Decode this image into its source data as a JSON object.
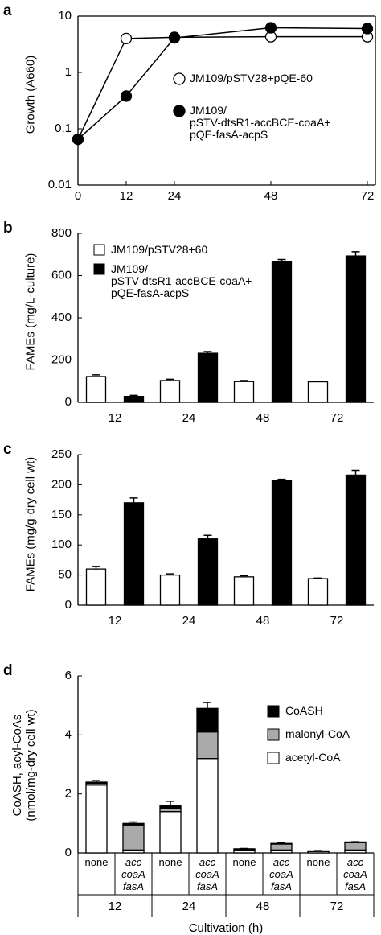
{
  "chart_data": [
    {
      "type": "line",
      "panel": "a",
      "ylabel": "Growth (A660)",
      "log_y": true,
      "x": [
        0,
        12,
        24,
        48,
        72
      ],
      "xlim": [
        0,
        74
      ],
      "xticks": [
        0,
        12,
        24,
        48,
        72
      ],
      "ylim": [
        0.01,
        10
      ],
      "yticks": [
        0.01,
        0.1,
        1,
        10
      ],
      "line_color": "#000000",
      "series": [
        {
          "name": "JM109/pSTV28+pQE-60",
          "color": "#ffffff",
          "values": [
            0.065,
            4.0,
            4.2,
            4.3,
            4.3
          ]
        },
        {
          "name": "JM109/\npSTV-dtsR1-accBCE-coaA+\npQE-fasA-acpS",
          "color": "#000000",
          "values": [
            0.065,
            0.38,
            4.1,
            6.2,
            6.0
          ]
        }
      ]
    },
    {
      "type": "bar",
      "panel": "b",
      "ylabel": "FAMEs (mg/L-culture)",
      "categories": [
        "12",
        "24",
        "48",
        "72"
      ],
      "ylim": [
        0,
        800
      ],
      "yticks": [
        0,
        200,
        400,
        600,
        800
      ],
      "series": [
        {
          "name": "JM109/pSTV28+60",
          "color": "#ffffff",
          "values": [
            122,
            103,
            98,
            97
          ],
          "errors": [
            8,
            6,
            5,
            1
          ]
        },
        {
          "name": "JM109/\npSTV-dtsR1-accBCE-coaA+\npQE-fasA-acpS",
          "color": "#000000",
          "values": [
            28,
            232,
            668,
            693
          ],
          "errors": [
            5,
            8,
            8,
            20
          ]
        }
      ]
    },
    {
      "type": "bar",
      "panel": "c",
      "ylabel": "FAMEs (mg/g-dry cell wt)",
      "categories": [
        "12",
        "24",
        "48",
        "72"
      ],
      "ylim": [
        0,
        250
      ],
      "yticks": [
        0,
        50,
        100,
        150,
        200,
        250
      ],
      "series": [
        {
          "color": "#ffffff",
          "values": [
            60,
            50,
            47,
            44
          ],
          "errors": [
            4,
            2,
            2,
            1
          ]
        },
        {
          "color": "#000000",
          "values": [
            170,
            110,
            207,
            216
          ],
          "errors": [
            8,
            6,
            2,
            8
          ]
        }
      ]
    },
    {
      "type": "bar",
      "panel": "d",
      "stacked": true,
      "ylabel": "CoASH, acyl-CoAs\n(nmol/mg-dry cell wt)",
      "xlabel": "Cultivation (h)",
      "categories": [
        "none",
        "acc\ncoaA\nfasA",
        "none",
        "acc\ncoaA\nfasA",
        "none",
        "acc\ncoaA\nfasA",
        "none",
        "acc\ncoaA\nfasA"
      ],
      "groups": [
        "12",
        "24",
        "48",
        "72"
      ],
      "ylim": [
        0,
        6
      ],
      "yticks": [
        0,
        2,
        4,
        6
      ],
      "series": [
        {
          "name": "acetyl-CoA",
          "color": "#ffffff",
          "values": [
            2.3,
            0.1,
            1.4,
            3.2,
            0.1,
            0.1,
            0.05,
            0.1
          ]
        },
        {
          "name": "malonyl-CoA",
          "color": "#aaaaaa",
          "values": [
            0.05,
            0.85,
            0.1,
            0.9,
            0.02,
            0.2,
            0.01,
            0.25
          ]
        },
        {
          "name": "CoASH",
          "color": "#000000",
          "values": [
            0.05,
            0.05,
            0.1,
            0.8,
            0.02,
            0.02,
            0.01,
            0.02
          ],
          "errors": [
            0.05,
            0.05,
            0.15,
            0.2,
            0.01,
            0.02,
            0.01,
            0.01
          ]
        }
      ]
    }
  ]
}
